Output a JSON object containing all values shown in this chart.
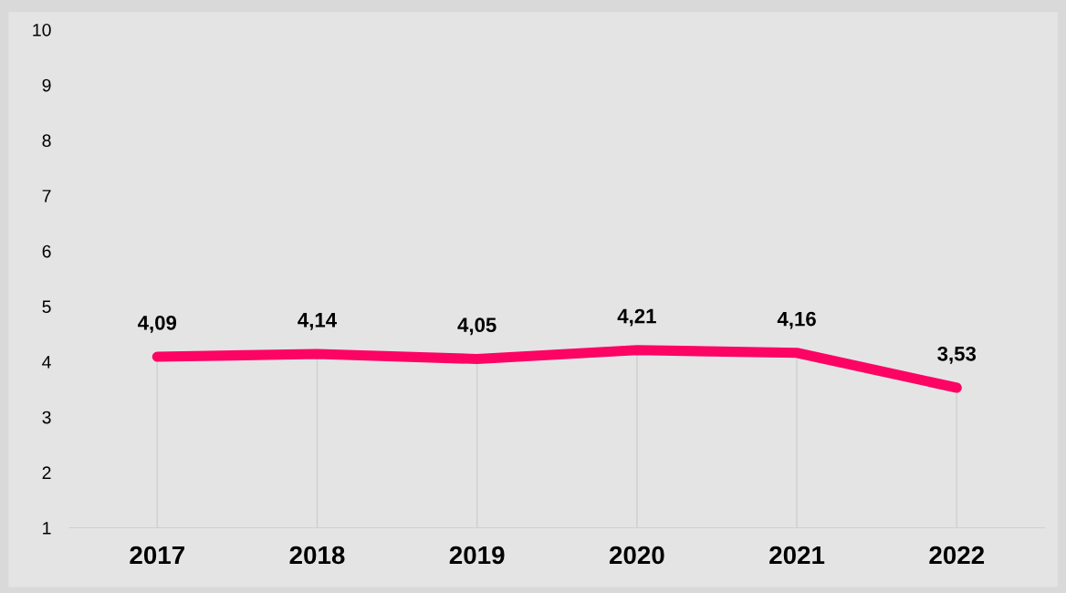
{
  "chart_data": {
    "type": "line",
    "categories": [
      "2017",
      "2018",
      "2019",
      "2020",
      "2021",
      "2022"
    ],
    "series": [
      {
        "color": "#fc0464",
        "values": [
          4.09,
          4.14,
          4.05,
          4.21,
          4.16,
          3.53
        ],
        "value_labels": [
          "4,09",
          "4,14",
          "4,05",
          "4,21",
          "4,16",
          "3,53"
        ]
      }
    ],
    "ylim": [
      1,
      10
    ],
    "yticks": [
      1,
      2,
      3,
      4,
      5,
      6,
      7,
      8,
      9,
      10
    ],
    "grid": false,
    "marker": "none",
    "line_style": "solid"
  }
}
